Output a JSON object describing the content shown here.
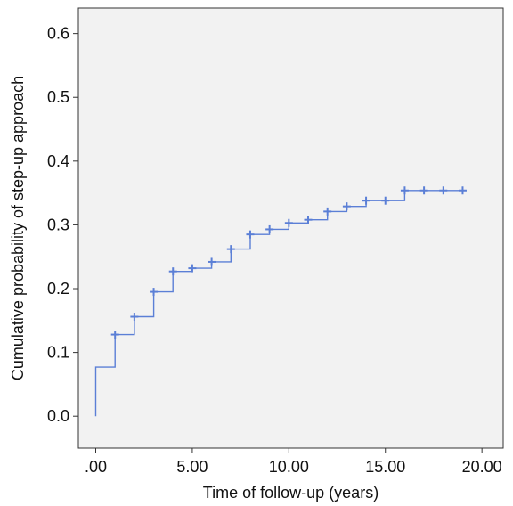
{
  "chart_data": {
    "type": "line",
    "title": "",
    "xlabel": "Time of follow-up (years)",
    "ylabel": "Cumulative probability of step-up approach",
    "xlim": [
      -0.9,
      21.1
    ],
    "ylim": [
      -0.05,
      0.64
    ],
    "x_ticks": [
      0,
      5,
      10,
      15,
      20
    ],
    "x_tick_labels": [
      ".00",
      "5.00",
      "10.00",
      "15.00",
      "20.00"
    ],
    "y_ticks": [
      0.0,
      0.1,
      0.2,
      0.3,
      0.4,
      0.5,
      0.6
    ],
    "y_tick_labels": [
      "0.0",
      "0.1",
      "0.2",
      "0.3",
      "0.4",
      "0.5",
      "0.6"
    ],
    "grid": false,
    "legend": "none",
    "colors": {
      "plot_background": "#f2f2f2",
      "line": "#5b7fd6",
      "axis": "#333333"
    },
    "series": [
      {
        "step_x": [
          0,
          0,
          1,
          1,
          2,
          2,
          3,
          3,
          4,
          4,
          5,
          5,
          6,
          6,
          7,
          7,
          8,
          8,
          9,
          9,
          10,
          10,
          11,
          11,
          12,
          12,
          13,
          13,
          14,
          14,
          15,
          15,
          16,
          16,
          19
        ],
        "step_y": [
          0.0,
          0.077,
          0.077,
          0.128,
          0.128,
          0.156,
          0.156,
          0.195,
          0.195,
          0.227,
          0.227,
          0.232,
          0.232,
          0.242,
          0.242,
          0.262,
          0.262,
          0.285,
          0.285,
          0.293,
          0.293,
          0.303,
          0.303,
          0.308,
          0.308,
          0.321,
          0.321,
          0.329,
          0.329,
          0.338,
          0.338,
          0.338,
          0.338,
          0.354,
          0.354
        ],
        "censor_x": [
          1,
          2,
          3,
          4,
          5,
          6,
          7,
          8,
          9,
          10,
          11,
          12,
          13,
          14,
          15,
          16,
          17,
          18,
          19
        ],
        "censor_y": [
          0.128,
          0.156,
          0.195,
          0.227,
          0.232,
          0.242,
          0.262,
          0.285,
          0.293,
          0.303,
          0.308,
          0.321,
          0.329,
          0.338,
          0.338,
          0.354,
          0.354,
          0.354,
          0.354
        ]
      }
    ]
  }
}
